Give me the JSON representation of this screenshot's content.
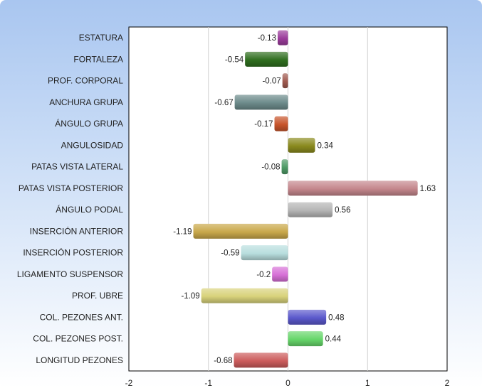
{
  "chart_data": {
    "type": "bar",
    "orientation": "horizontal",
    "categories": [
      "ESTATURA",
      "FORTALEZA",
      "PROF. CORPORAL",
      "ANCHURA GRUPA",
      "ÁNGULO GRUPA",
      "ANGULOSIDAD",
      "PATAS VISTA LATERAL",
      "PATAS VISTA POSTERIOR",
      "ÁNGULO PODAL",
      "INSERCIÓN ANTERIOR",
      "INSERCIÓN POSTERIOR",
      "LIGAMENTO SUSPENSOR",
      "PROF. UBRE",
      "COL. PEZONES ANT.",
      "COL. PEZONES POST.",
      "LONGITUD PEZONES"
    ],
    "values": [
      -0.13,
      -0.54,
      -0.07,
      -0.67,
      -0.17,
      0.34,
      -0.08,
      1.63,
      0.56,
      -1.19,
      -0.59,
      -0.2,
      -1.09,
      0.48,
      0.44,
      -0.68
    ],
    "value_labels": [
      "-0.13",
      "-0.54",
      "-0.07",
      "-0.67",
      "-0.17",
      "0.34",
      "-0.08",
      "1.63",
      "0.56",
      "-1.19",
      "-0.59",
      "-0.2",
      "-1.09",
      "0.48",
      "0.44",
      "-0.68"
    ],
    "colors": [
      "#9b3c9b",
      "#2f6e1f",
      "#a05a50",
      "#6c8a8a",
      "#c8542a",
      "#8a8a1e",
      "#4e9a66",
      "#c4868c",
      "#b5b5b5",
      "#c9a84a",
      "#b8dede",
      "#d770d7",
      "#d8d27a",
      "#5a58cc",
      "#66d66a",
      "#cc5c5c"
    ],
    "xlim": [
      -2,
      2
    ],
    "xticks": [
      "-2",
      "-1",
      "0",
      "1",
      "2"
    ],
    "grid": true,
    "title": "",
    "xlabel": "",
    "ylabel": ""
  }
}
